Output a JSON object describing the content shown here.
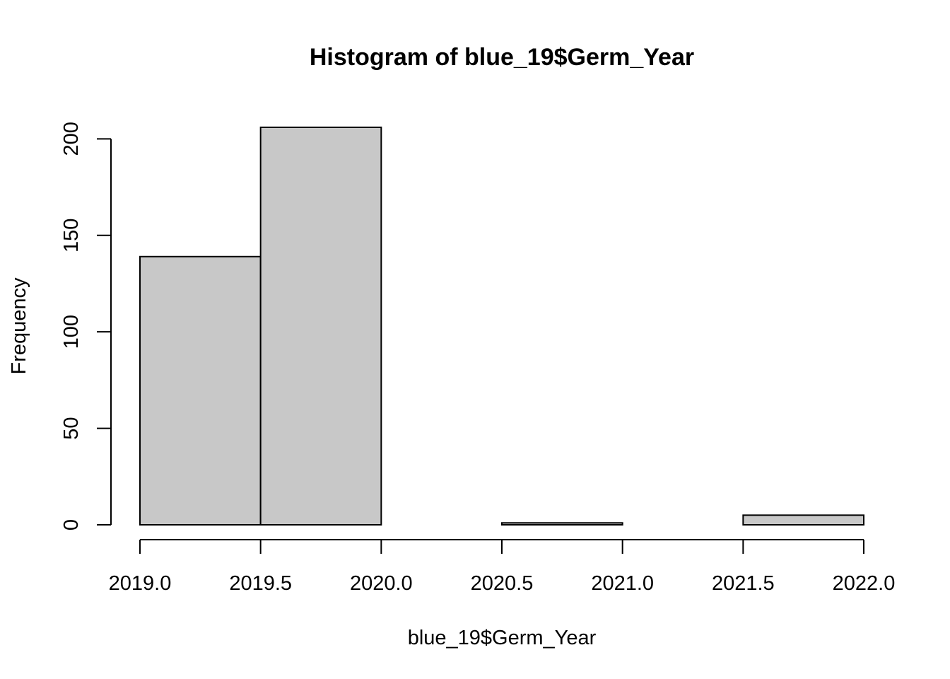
{
  "chart_data": {
    "type": "bar",
    "title": "Histogram of blue_19$Germ_Year",
    "xlabel": "blue_19$Germ_Year",
    "ylabel": "Frequency",
    "bins": [
      {
        "start": 2019.0,
        "end": 2019.5,
        "count": 139
      },
      {
        "start": 2019.5,
        "end": 2020.0,
        "count": 206
      },
      {
        "start": 2020.0,
        "end": 2020.5,
        "count": 0
      },
      {
        "start": 2020.5,
        "end": 2021.0,
        "count": 1
      },
      {
        "start": 2021.0,
        "end": 2021.5,
        "count": 0
      },
      {
        "start": 2021.5,
        "end": 2022.0,
        "count": 5
      }
    ],
    "xlim": [
      2019.0,
      2022.0
    ],
    "ylim": [
      0,
      206
    ],
    "x_ticks": [
      "2019.0",
      "2019.5",
      "2020.0",
      "2020.5",
      "2021.0",
      "2021.5",
      "2022.0"
    ],
    "y_ticks": [
      "0",
      "50",
      "100",
      "150",
      "200"
    ],
    "grid": false,
    "legend": "none",
    "bar_color": "#c8c8c8",
    "edge_color": "#000000"
  }
}
